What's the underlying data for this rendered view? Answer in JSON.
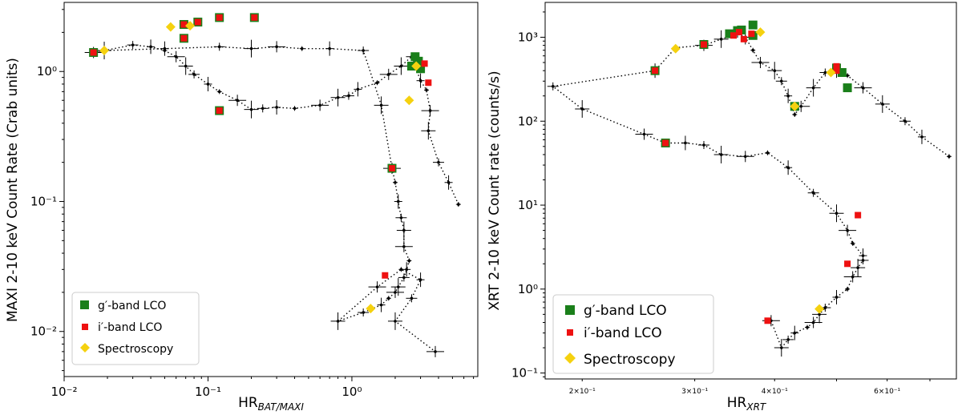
{
  "chart_data": [
    {
      "type": "scatter",
      "xlabel": "HR",
      "xlabel_sub": "BAT/MAXI",
      "ylabel": "MAXI 2-10 keV Count Rate (Crab units)",
      "xscale": "log",
      "yscale": "log",
      "xlim": [
        0.01,
        7.5
      ],
      "ylim": [
        0.0045,
        3.4
      ],
      "x_ticks": [
        {
          "v": 0.01,
          "l": "10⁻²"
        },
        {
          "v": 0.1,
          "l": "10⁻¹"
        },
        {
          "v": 1,
          "l": "10⁰"
        }
      ],
      "y_ticks": [
        {
          "v": 0.01,
          "l": "10⁻²"
        },
        {
          "v": 0.1,
          "l": "10⁻¹"
        },
        {
          "v": 1,
          "l": "10⁰"
        }
      ],
      "legend": {
        "position": "lower left",
        "entries": [
          "g′-band LCO",
          "i′-band LCO",
          "Spectroscopy"
        ]
      },
      "series": [
        {
          "name": "track",
          "style": "dotted-line",
          "color": "#000000",
          "x": [
            5.5,
            4.7,
            4.0,
            3.4,
            3.5,
            3.3,
            3.0,
            2.6,
            2.2,
            1.8,
            1.5,
            1.1,
            0.95,
            0.8,
            0.6,
            0.4,
            0.3,
            0.24,
            0.2,
            0.16,
            0.12,
            0.1,
            0.08,
            0.07,
            0.06,
            0.05,
            0.04,
            0.03,
            0.019,
            0.016,
            0.019,
            0.05,
            0.12,
            0.2,
            0.3,
            0.45,
            0.7,
            1.2,
            1.6,
            1.9,
            2.0,
            2.1,
            2.2,
            2.3,
            2.3,
            2.5,
            2.4,
            2.3,
            2.1,
            2.0,
            1.8,
            1.6,
            1.2,
            0.8,
            1.5,
            2.2,
            3.0,
            2.6,
            2.0,
            3.8
          ],
          "y": [
            0.095,
            0.14,
            0.2,
            0.35,
            0.5,
            0.72,
            0.85,
            1.3,
            1.1,
            0.95,
            0.82,
            0.73,
            0.65,
            0.63,
            0.55,
            0.52,
            0.53,
            0.52,
            0.51,
            0.6,
            0.7,
            0.8,
            0.95,
            1.1,
            1.3,
            1.45,
            1.55,
            1.6,
            1.45,
            1.4,
            1.45,
            1.5,
            1.55,
            1.5,
            1.55,
            1.5,
            1.5,
            1.45,
            0.55,
            0.18,
            0.14,
            0.1,
            0.075,
            0.06,
            0.045,
            0.035,
            0.03,
            0.026,
            0.022,
            0.02,
            0.018,
            0.016,
            0.014,
            0.012,
            0.022,
            0.03,
            0.025,
            0.018,
            0.012,
            0.007
          ]
        },
        {
          "name": "g′-band LCO",
          "marker": "square",
          "color": "#1a7f1a",
          "x": [
            0.016,
            0.068,
            0.068,
            0.085,
            0.12,
            0.21,
            0.12,
            1.9,
            2.6,
            2.75,
            2.9,
            3.0
          ],
          "y": [
            1.4,
            2.3,
            1.8,
            2.4,
            2.6,
            2.6,
            0.5,
            0.18,
            1.1,
            1.3,
            1.2,
            1.05
          ]
        },
        {
          "name": "i′-band LCO",
          "marker": "square",
          "color": "#ee1111",
          "x": [
            0.016,
            0.068,
            0.068,
            0.085,
            0.12,
            0.21,
            0.12,
            1.9,
            3.2,
            3.4,
            1.7
          ],
          "y": [
            1.4,
            2.3,
            1.8,
            2.4,
            2.6,
            2.6,
            0.5,
            0.18,
            1.15,
            0.82,
            0.027
          ]
        },
        {
          "name": "Spectroscopy",
          "marker": "diamond",
          "color": "#f5d10f",
          "x": [
            0.019,
            0.055,
            0.075,
            2.8,
            2.5,
            1.35
          ],
          "y": [
            1.45,
            2.2,
            2.25,
            1.1,
            0.6,
            0.015
          ]
        }
      ]
    },
    {
      "type": "scatter",
      "xlabel": "HR",
      "xlabel_sub": "XRT",
      "ylabel": "XRT 2-10 keV Count rate (counts/s)",
      "xscale": "log",
      "yscale": "log",
      "xlim": [
        0.175,
        0.77
      ],
      "ylim": [
        0.085,
        2600
      ],
      "x_ticks": [
        {
          "v": 0.2,
          "l": "2×10⁻¹"
        },
        {
          "v": 0.3,
          "l": "3×10⁻¹"
        },
        {
          "v": 0.4,
          "l": "4×10⁻¹"
        },
        {
          "v": 0.6,
          "l": "6×10⁻¹"
        }
      ],
      "y_ticks": [
        {
          "v": 0.1,
          "l": "10⁻¹"
        },
        {
          "v": 1,
          "l": "10⁰"
        },
        {
          "v": 10,
          "l": "10¹"
        },
        {
          "v": 100,
          "l": "10²"
        },
        {
          "v": 1000,
          "l": "10³"
        }
      ],
      "legend": {
        "position": "lower left",
        "entries": [
          "g′-band LCO",
          "i′-band LCO",
          "Spectroscopy"
        ]
      },
      "series": [
        {
          "name": "track",
          "style": "dotted-line",
          "color": "#000000",
          "x": [
            0.75,
            0.68,
            0.64,
            0.59,
            0.55,
            0.52,
            0.5,
            0.48,
            0.46,
            0.44,
            0.43,
            0.42,
            0.41,
            0.4,
            0.38,
            0.37,
            0.36,
            0.35,
            0.33,
            0.31,
            0.28,
            0.26,
            0.18,
            0.2,
            0.25,
            0.27,
            0.29,
            0.31,
            0.33,
            0.36,
            0.39,
            0.42,
            0.46,
            0.5,
            0.52,
            0.53,
            0.55,
            0.55,
            0.54,
            0.53,
            0.52,
            0.5,
            0.48,
            0.47,
            0.46,
            0.45,
            0.43,
            0.42,
            0.41,
            0.395
          ],
          "y": [
            38,
            65,
            100,
            160,
            250,
            350,
            400,
            380,
            250,
            150,
            120,
            200,
            300,
            400,
            500,
            700,
            1000,
            1100,
            950,
            800,
            750,
            400,
            260,
            140,
            70,
            55,
            55,
            52,
            40,
            38,
            42,
            28,
            14,
            8,
            5,
            3.5,
            2.5,
            2.2,
            1.8,
            1.4,
            1.0,
            0.8,
            0.6,
            0.5,
            0.4,
            0.35,
            0.3,
            0.25,
            0.2,
            0.42
          ]
        },
        {
          "name": "g′-band LCO",
          "marker": "square",
          "color": "#1a7f1a",
          "x": [
            0.26,
            0.31,
            0.34,
            0.35,
            0.355,
            0.37,
            0.37,
            0.5,
            0.51,
            0.52,
            0.43,
            0.27
          ],
          "y": [
            400,
            820,
            1100,
            1200,
            1220,
            1050,
            1400,
            430,
            380,
            250,
            150,
            55
          ]
        },
        {
          "name": "i′-band LCO",
          "marker": "square",
          "color": "#ee1111",
          "x": [
            0.26,
            0.31,
            0.345,
            0.352,
            0.358,
            0.368,
            0.5,
            0.5,
            0.54,
            0.52,
            0.39,
            0.27
          ],
          "y": [
            400,
            820,
            1050,
            1150,
            950,
            1100,
            450,
            400,
            7.6,
            2.0,
            0.42,
            55
          ]
        },
        {
          "name": "Spectroscopy",
          "marker": "diamond",
          "color": "#f5d10f",
          "x": [
            0.28,
            0.38,
            0.43,
            0.49,
            0.47
          ],
          "y": [
            730,
            1150,
            150,
            380,
            0.58
          ]
        }
      ]
    }
  ]
}
